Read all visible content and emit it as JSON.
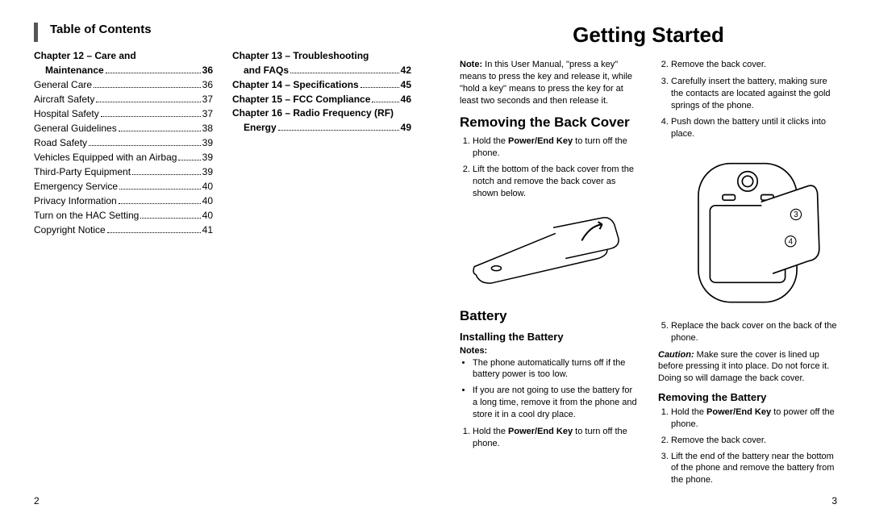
{
  "leftPage": {
    "pageNumber": "2",
    "title": "Table of Contents",
    "col1": {
      "head1": "Chapter 12 – Care and",
      "head1b": "Maintenance",
      "head1page": "36",
      "items": [
        {
          "label": "General Care",
          "page": "36"
        },
        {
          "label": "Aircraft Safety",
          "page": "37"
        },
        {
          "label": "Hospital Safety",
          "page": "37"
        },
        {
          "label": "General Guidelines",
          "page": "38"
        },
        {
          "label": "Road Safety",
          "page": "39"
        },
        {
          "label": "Vehicles Equipped with an Airbag",
          "page": "39"
        },
        {
          "label": "Third-Party Equipment",
          "page": "39"
        },
        {
          "label": "Emergency Service",
          "page": "40"
        },
        {
          "label": "Privacy Information",
          "page": "40"
        },
        {
          "label": "Turn on the HAC Setting",
          "page": "40"
        },
        {
          "label": "Copyright Notice",
          "page": "41"
        }
      ]
    },
    "col2": {
      "items": [
        {
          "head": "Chapter 13 – Troubleshooting",
          "label": "and FAQs",
          "page": "42",
          "indent": true
        },
        {
          "label": "Chapter 14 – Specifications",
          "page": "45",
          "bold": true
        },
        {
          "label": "Chapter 15 – FCC Compliance",
          "page": "46",
          "bold": true
        },
        {
          "head": "Chapter 16 – Radio Frequency (RF)",
          "label": "Energy",
          "page": "49",
          "indent": true
        }
      ]
    }
  },
  "rightPage": {
    "pageNumber": "3",
    "title": "Getting Started",
    "noteLabel": "Note:",
    "noteBody": " In this User Manual, \"press a key\" means to press the key and release it, while \"hold a key\" means to press the key for at least two seconds and then release it.",
    "removeCoverTitle": "Removing the Back Cover",
    "removeCoverStep1a": "Hold the ",
    "removeCoverStep1b": "Power/End Key",
    "removeCoverStep1c": " to turn off the phone.",
    "removeCoverStep2": "Lift the bottom of the back cover from the notch and remove the back cover as shown below.",
    "batteryTitle": "Battery",
    "installTitle": "Installing the Battery",
    "notesLabel": "Notes:",
    "bullet1": "The phone automatically turns off if the battery power is too low.",
    "bullet2": "If you are not going to use the battery for a long time, remove it from the phone and store it in a cool dry place.",
    "installStep1a": "Hold the ",
    "installStep1b": "Power/End Key",
    "installStep1c": " to turn off the phone.",
    "rightCol": {
      "step2": "Remove the back cover.",
      "step3": "Carefully insert the battery, making sure the contacts are located against the gold springs of the phone.",
      "step4": "Push down the battery until it clicks into place.",
      "step5": "Replace the back cover on the back of the phone.",
      "cautionLabel": "Caution:",
      "cautionBody": " Make sure the cover is lined up before pressing it into place. Do not force it. Doing so will damage the back cover.",
      "removeBatTitle": "Removing the Battery",
      "rbStep1a": "Hold the ",
      "rbStep1b": "Power/End Key",
      "rbStep1c": " to power off the phone.",
      "rbStep2": "Remove the back cover.",
      "rbStep3": "Lift the end of the battery near the bottom of the phone and remove the battery from the phone."
    }
  }
}
